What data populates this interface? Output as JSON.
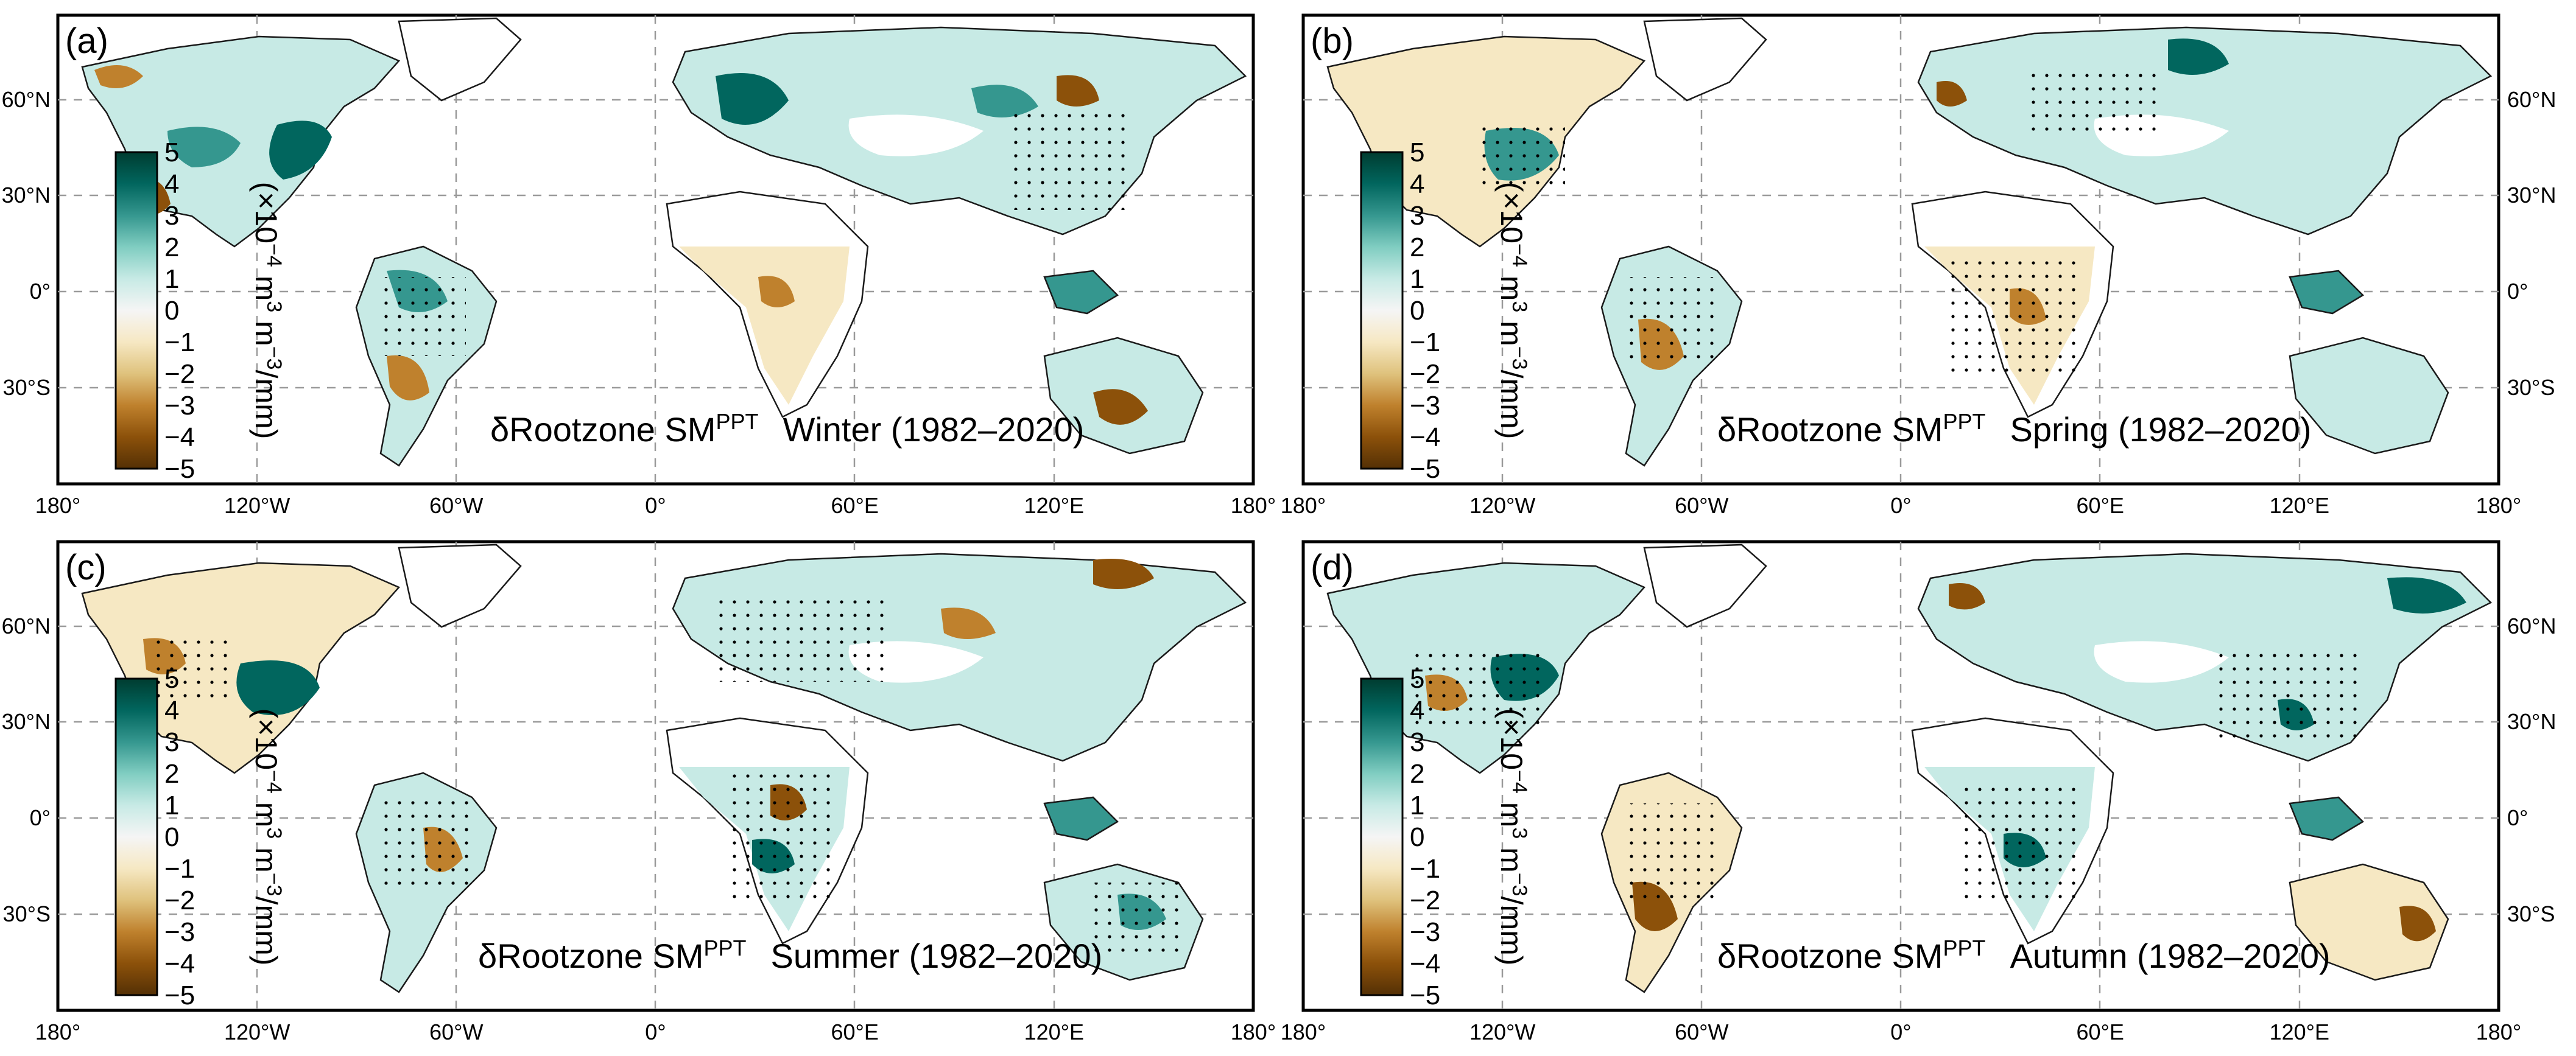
{
  "figure": {
    "colormap": [
      "#543005",
      "#8c510a",
      "#bf812d",
      "#dfc27d",
      "#f6e8c3",
      "#f5f5f5",
      "#c7eae5",
      "#80cdc1",
      "#35978f",
      "#01665e",
      "#003c30"
    ],
    "stipple_color": "#000000",
    "coastline_color": "#1a1a1a",
    "lon_ticks": [
      "180°",
      "120°W",
      "60°W",
      "0°",
      "60°E",
      "120°E",
      "180°"
    ],
    "lat_ticks": [
      "60°N",
      "30°N",
      "0°",
      "30°S"
    ],
    "colorbar": {
      "ticks": [
        "5",
        "4",
        "3",
        "2",
        "1",
        "0",
        "−1",
        "−2",
        "−3",
        "−4",
        "−5"
      ],
      "unit_prefix": "(×10",
      "unit_exp1": "−4",
      "unit_mid1": " m",
      "unit_exp2": "3",
      "unit_mid2": " m",
      "unit_exp3": "−3",
      "unit_suffix": "/mm)",
      "range": [
        -5,
        5
      ]
    },
    "title_var": "δRootzone SM",
    "title_sup": "PPT",
    "panels": [
      {
        "label": "(a)",
        "season": "Winter (1982–2020)"
      },
      {
        "label": "(b)",
        "season": "Spring (1982–2020)"
      },
      {
        "label": "(c)",
        "season": "Summer (1982–2020)"
      },
      {
        "label": "(d)",
        "season": "Autumn (1982–2020)"
      }
    ]
  }
}
